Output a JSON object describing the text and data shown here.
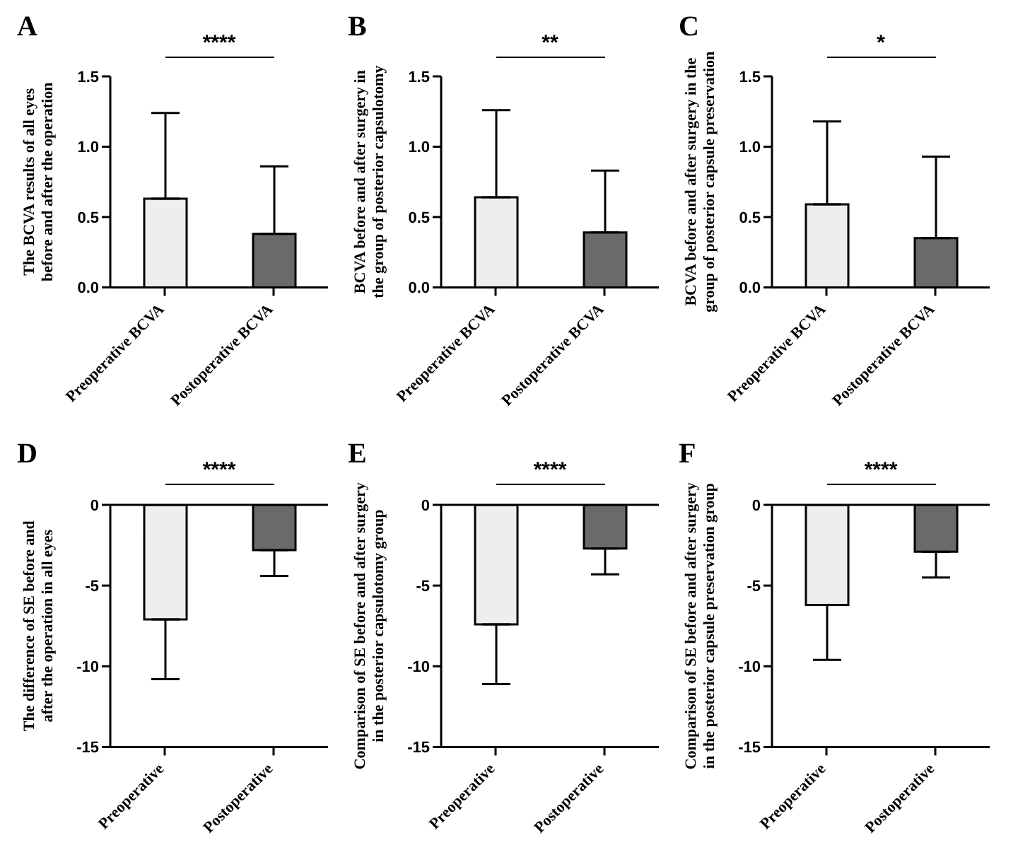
{
  "chart_data": [
    {
      "type": "bar",
      "title": "A",
      "ylabel": "The BCVA results of all eyes before and after the operation",
      "categories": [
        "Preoperative BCVA",
        "Postoperative BCVA"
      ],
      "values": [
        0.63,
        0.38
      ],
      "colors": [
        "#eeeeee",
        "#6a6a6a"
      ],
      "errors": [
        [
          0.63,
          1.24
        ],
        [
          0.38,
          0.86
        ]
      ],
      "ylim": [
        0,
        1.5
      ],
      "yticks": [
        {
          "value": 0,
          "label": "0.0"
        },
        {
          "value": 0.5,
          "label": "0.5"
        },
        {
          "value": 1,
          "label": "1.0"
        },
        {
          "value": 1.5,
          "label": "1.5"
        }
      ],
      "annotations": [
        "****"
      ]
    },
    {
      "type": "bar",
      "title": "B",
      "ylabel": "BCVA before and after surgery in the group of posterior capsulotomy",
      "categories": [
        "Preoperative BCVA",
        "Postoperative BCVA"
      ],
      "values": [
        0.64,
        0.39
      ],
      "colors": [
        "#eeeeee",
        "#6a6a6a"
      ],
      "errors": [
        [
          0.64,
          1.26
        ],
        [
          0.39,
          0.83
        ]
      ],
      "ylim": [
        0,
        1.5
      ],
      "yticks": [
        {
          "value": 0,
          "label": "0.0"
        },
        {
          "value": 0.5,
          "label": "0.5"
        },
        {
          "value": 1,
          "label": "1.0"
        },
        {
          "value": 1.5,
          "label": "1.5"
        }
      ],
      "annotations": [
        "**"
      ]
    },
    {
      "type": "bar",
      "title": "C",
      "ylabel": "BCVA before and after surgery in the group of posterior capsule preservation",
      "categories": [
        "Preoperative BCVA",
        "Postoperative BCVA"
      ],
      "values": [
        0.59,
        0.35
      ],
      "colors": [
        "#eeeeee",
        "#6a6a6a"
      ],
      "errors": [
        [
          0.59,
          1.18
        ],
        [
          0.35,
          0.93
        ]
      ],
      "ylim": [
        0,
        1.5
      ],
      "yticks": [
        {
          "value": 0,
          "label": "0.0"
        },
        {
          "value": 0.5,
          "label": "0.5"
        },
        {
          "value": 1,
          "label": "1.0"
        },
        {
          "value": 1.5,
          "label": "1.5"
        }
      ],
      "annotations": [
        "*"
      ]
    },
    {
      "type": "bar",
      "title": "D",
      "ylabel": "The difference of SE before and after the operation in all eyes",
      "categories": [
        "Preoperative",
        "Postoperative"
      ],
      "values": [
        -7.1,
        -2.8
      ],
      "colors": [
        "#eeeeee",
        "#6a6a6a"
      ],
      "errors": [
        [
          -10.8,
          -7.1
        ],
        [
          -4.4,
          -2.8
        ]
      ],
      "ylim": [
        -15,
        0
      ],
      "yticks": [
        -15,
        -10,
        -5,
        0
      ],
      "annotations": [
        "****"
      ]
    },
    {
      "type": "bar",
      "title": "E",
      "ylabel": "Comparison of SE before and after surgery in the posterior capsulotomy group",
      "categories": [
        "Preoperative",
        "Postoperative"
      ],
      "values": [
        -7.4,
        -2.7
      ],
      "colors": [
        "#eeeeee",
        "#6a6a6a"
      ],
      "errors": [
        [
          -11.1,
          -7.4
        ],
        [
          -4.3,
          -2.7
        ]
      ],
      "ylim": [
        -15,
        0
      ],
      "yticks": [
        -15,
        -10,
        -5,
        0
      ],
      "annotations": [
        "****"
      ]
    },
    {
      "type": "bar",
      "title": "F",
      "ylabel": "Comparison of SE before and after surgery in the posterior capsule preservation group",
      "categories": [
        "Preoperative",
        "Postoperative"
      ],
      "values": [
        -6.2,
        -2.9
      ],
      "colors": [
        "#eeeeee",
        "#6a6a6a"
      ],
      "errors": [
        [
          -9.6,
          -6.2
        ],
        [
          -4.5,
          -2.9
        ]
      ],
      "ylim": [
        -15,
        0
      ],
      "yticks": [
        -15,
        -10,
        -5,
        0
      ],
      "annotations": [
        "****"
      ]
    }
  ]
}
